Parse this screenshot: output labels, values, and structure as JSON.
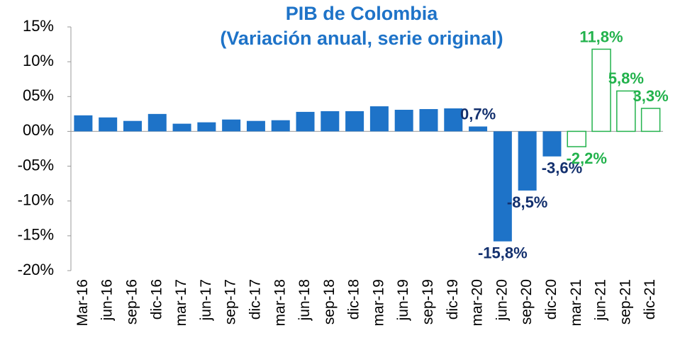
{
  "chart_data": {
    "type": "bar",
    "title": [
      "PIB de Colombia",
      "(Variación anual, serie original)"
    ],
    "categories": [
      "Mar-16",
      "jun-16",
      "sep-16",
      "dic-16",
      "mar-17",
      "jun-17",
      "sep-17",
      "dic-17",
      "mar-18",
      "jun-18",
      "sep-18",
      "dic-18",
      "mar-19",
      "jun-19",
      "sep-19",
      "dic-19",
      "mar-20",
      "jun-20",
      "sep-20",
      "dic-20",
      "mar-21",
      "jun-21",
      "sep-21",
      "dic-21"
    ],
    "series": [
      {
        "color": "#1e73c8",
        "filled": true,
        "label_color": "#13306e",
        "values": [
          2.3,
          2.0,
          1.5,
          2.5,
          1.1,
          1.3,
          1.7,
          1.5,
          1.6,
          2.8,
          2.9,
          2.9,
          3.6,
          3.1,
          3.2,
          3.3,
          0.7,
          -15.8,
          -8.5,
          -3.6,
          null,
          null,
          null,
          null
        ],
        "value_labels": [
          null,
          null,
          null,
          null,
          null,
          null,
          null,
          null,
          null,
          null,
          null,
          null,
          null,
          null,
          null,
          null,
          "0,7%",
          "-15,8%",
          "-8,5%",
          "-3,6%",
          null,
          null,
          null,
          null
        ]
      },
      {
        "color": "#22b24c",
        "filled": false,
        "label_color": "#22b24c",
        "values": [
          null,
          null,
          null,
          null,
          null,
          null,
          null,
          null,
          null,
          null,
          null,
          null,
          null,
          null,
          null,
          null,
          null,
          null,
          null,
          null,
          -2.2,
          11.8,
          5.8,
          3.3
        ],
        "value_labels": [
          null,
          null,
          null,
          null,
          null,
          null,
          null,
          null,
          null,
          null,
          null,
          null,
          null,
          null,
          null,
          null,
          null,
          null,
          null,
          null,
          "-2,2%",
          "11,8%",
          "5,8%",
          "3,3%"
        ]
      }
    ],
    "ylim": [
      -20,
      15
    ],
    "yticks": [
      {
        "value": -20,
        "label": "-20%"
      },
      {
        "value": -15,
        "label": "-15%"
      },
      {
        "value": -10,
        "label": "-10%"
      },
      {
        "value": -5,
        "label": "-05%"
      },
      {
        "value": 0,
        "label": "00%"
      },
      {
        "value": 5,
        "label": "05%"
      },
      {
        "value": 10,
        "label": "10%"
      },
      {
        "value": 15,
        "label": "15%"
      }
    ],
    "title_color": "#1e73c8"
  }
}
